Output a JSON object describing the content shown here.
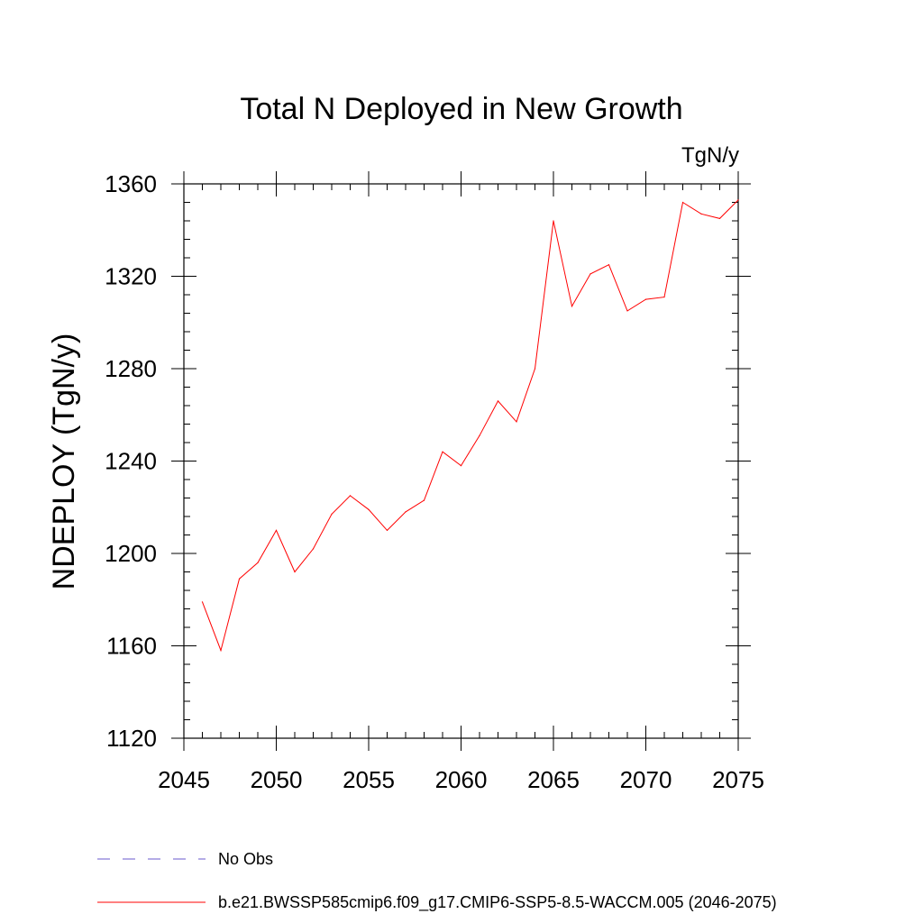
{
  "chart_data": {
    "type": "line",
    "title": "Total N Deployed in New Growth",
    "units_label": "TgN/y",
    "ylabel": "NDEPLOY  (TgN/y)",
    "xlabel": "",
    "xlim": [
      2045,
      2075
    ],
    "ylim": [
      1120,
      1360
    ],
    "x_ticks": [
      2045,
      2050,
      2055,
      2060,
      2065,
      2070,
      2075
    ],
    "y_ticks": [
      1120,
      1160,
      1200,
      1240,
      1280,
      1320,
      1360
    ],
    "grid": false,
    "series": [
      {
        "name": "b.e21.BWSSP585cmip6.f09_g17.CMIP6-SSP5-8.5-WACCM.005 (2046-2075)",
        "color": "#ff0000",
        "dash": "solid",
        "x": [
          2046,
          2047,
          2048,
          2049,
          2050,
          2051,
          2052,
          2053,
          2054,
          2055,
          2056,
          2057,
          2058,
          2059,
          2060,
          2061,
          2062,
          2063,
          2064,
          2065,
          2066,
          2067,
          2068,
          2069,
          2070,
          2071,
          2072,
          2073,
          2074,
          2075
        ],
        "values": [
          1179,
          1158,
          1189,
          1196,
          1210,
          1192,
          1202,
          1217,
          1225,
          1219,
          1210,
          1218,
          1223,
          1244,
          1238,
          1251,
          1266,
          1257,
          1280,
          1344,
          1307,
          1321,
          1325,
          1305,
          1310,
          1311,
          1352,
          1347,
          1345,
          1353
        ]
      }
    ],
    "legend": [
      {
        "label": "No Obs",
        "color": "#6a5acd",
        "dash": "dashed"
      },
      {
        "label": "b.e21.BWSSP585cmip6.f09_g17.CMIP6-SSP5-8.5-WACCM.005 (2046-2075)",
        "color": "#ff0000",
        "dash": "solid"
      }
    ],
    "legend_position": "bottom-left"
  }
}
